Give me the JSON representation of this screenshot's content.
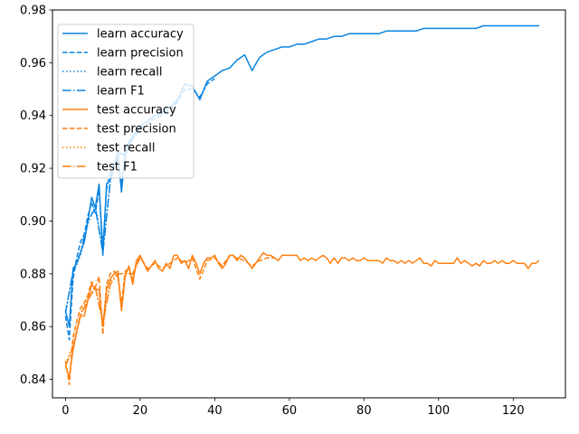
{
  "chart_data": {
    "type": "line",
    "title": "",
    "xlabel": "",
    "ylabel": "",
    "xlim": [
      -3.5,
      134
    ],
    "ylim": [
      0.833,
      0.98
    ],
    "xticks": [
      0,
      20,
      40,
      60,
      80,
      100,
      120
    ],
    "yticks": [
      0.84,
      0.86,
      0.88,
      0.9,
      0.92,
      0.94,
      0.96,
      0.98
    ],
    "ytick_labels": [
      "0.84",
      "0.86",
      "0.88",
      "0.90",
      "0.92",
      "0.94",
      "0.96",
      "0.98"
    ],
    "grid": false,
    "legend_position": "top-left",
    "colors": {
      "learn": "#1f77b4",
      "test": "#ff7f0e",
      "learn_bright": "#0a84e0"
    },
    "series": [
      {
        "name": "learn accuracy",
        "color": "#0a84e0",
        "style": "solid",
        "x": [
          0,
          1,
          2,
          3,
          4,
          5,
          6,
          7,
          8,
          9,
          10,
          11,
          12,
          13,
          14,
          15,
          16,
          17,
          18,
          19,
          20,
          22,
          24,
          26,
          28,
          30,
          32,
          34,
          36,
          38,
          40,
          42,
          44,
          46,
          48,
          50,
          52,
          54,
          56,
          58,
          60,
          62,
          64,
          66,
          68,
          70,
          72,
          74,
          76,
          78,
          80,
          82,
          84,
          86,
          88,
          90,
          92,
          94,
          96,
          98,
          100,
          102,
          104,
          106,
          108,
          110,
          112,
          114,
          116,
          118,
          120,
          122,
          124,
          126,
          127
        ],
        "y": [
          0.866,
          0.86,
          0.882,
          0.884,
          0.888,
          0.892,
          0.9,
          0.909,
          0.905,
          0.914,
          0.887,
          0.914,
          0.916,
          0.921,
          0.926,
          0.911,
          0.926,
          0.93,
          0.932,
          0.934,
          0.936,
          0.938,
          0.94,
          0.941,
          0.943,
          0.946,
          0.952,
          0.951,
          0.946,
          0.953,
          0.955,
          0.957,
          0.958,
          0.961,
          0.963,
          0.957,
          0.962,
          0.964,
          0.965,
          0.966,
          0.966,
          0.967,
          0.967,
          0.968,
          0.969,
          0.969,
          0.97,
          0.97,
          0.971,
          0.971,
          0.971,
          0.971,
          0.971,
          0.972,
          0.972,
          0.972,
          0.972,
          0.972,
          0.973,
          0.973,
          0.973,
          0.973,
          0.973,
          0.973,
          0.973,
          0.973,
          0.974,
          0.974,
          0.974,
          0.974,
          0.974,
          0.974,
          0.974,
          0.974,
          0.974
        ]
      },
      {
        "name": "learn precision",
        "color": "#0a84e0",
        "style": "dashed",
        "x": [
          0,
          1,
          2,
          3,
          4,
          5,
          6,
          7,
          8,
          9,
          10,
          11,
          12,
          13,
          14,
          15,
          16,
          17,
          18,
          19,
          20,
          22,
          24,
          26,
          28,
          30,
          32,
          34,
          36,
          38,
          40
        ],
        "y": [
          0.864,
          0.855,
          0.878,
          0.886,
          0.892,
          0.895,
          0.902,
          0.907,
          0.903,
          0.912,
          0.89,
          0.912,
          0.918,
          0.92,
          0.924,
          0.914,
          0.924,
          0.929,
          0.931,
          0.933,
          0.935,
          0.937,
          0.939,
          0.94,
          0.942,
          0.945,
          0.95,
          0.95,
          0.947,
          0.952,
          0.954
        ]
      },
      {
        "name": "learn recall",
        "color": "#0a84e0",
        "style": "dotted",
        "x": [
          0,
          2,
          4,
          6,
          8,
          10,
          12,
          14,
          16,
          18,
          20
        ],
        "y": [
          0.866,
          0.88,
          0.887,
          0.899,
          0.906,
          0.889,
          0.915,
          0.925,
          0.925,
          0.931,
          0.935
        ]
      },
      {
        "name": "learn F1",
        "color": "#0a84e0",
        "style": "dashdot",
        "x": [
          0,
          2,
          4,
          6,
          8,
          10,
          12,
          14,
          16,
          18,
          20
        ],
        "y": [
          0.865,
          0.881,
          0.888,
          0.9,
          0.905,
          0.888,
          0.915,
          0.926,
          0.925,
          0.932,
          0.935
        ]
      },
      {
        "name": "test accuracy",
        "color": "#ff7f0e",
        "style": "solid",
        "x": [
          0,
          1,
          2,
          3,
          4,
          5,
          6,
          7,
          8,
          9,
          10,
          11,
          12,
          13,
          14,
          15,
          16,
          17,
          18,
          19,
          20,
          21,
          22,
          23,
          24,
          25,
          26,
          27,
          28,
          29,
          30,
          31,
          32,
          33,
          34,
          35,
          36,
          37,
          38,
          39,
          40,
          41,
          42,
          43,
          44,
          45,
          46,
          47,
          48,
          49,
          50,
          51,
          52,
          53,
          54,
          55,
          56,
          57,
          58,
          59,
          60,
          61,
          62,
          63,
          64,
          65,
          66,
          67,
          68,
          69,
          70,
          71,
          72,
          73,
          74,
          75,
          76,
          77,
          78,
          79,
          80,
          81,
          82,
          83,
          84,
          85,
          86,
          87,
          88,
          89,
          90,
          91,
          92,
          93,
          94,
          95,
          96,
          97,
          98,
          99,
          100,
          101,
          102,
          103,
          104,
          105,
          106,
          107,
          108,
          109,
          110,
          111,
          112,
          113,
          114,
          115,
          116,
          117,
          118,
          119,
          120,
          121,
          122,
          123,
          124,
          125,
          126,
          127
        ],
        "y": [
          0.845,
          0.841,
          0.851,
          0.858,
          0.864,
          0.864,
          0.87,
          0.876,
          0.874,
          0.874,
          0.86,
          0.874,
          0.878,
          0.88,
          0.881,
          0.866,
          0.879,
          0.883,
          0.876,
          0.885,
          0.887,
          0.884,
          0.881,
          0.883,
          0.885,
          0.882,
          0.881,
          0.884,
          0.882,
          0.887,
          0.887,
          0.884,
          0.885,
          0.882,
          0.887,
          0.884,
          0.88,
          0.884,
          0.886,
          0.886,
          0.887,
          0.884,
          0.882,
          0.884,
          0.887,
          0.887,
          0.885,
          0.887,
          0.886,
          0.884,
          0.882,
          0.884,
          0.886,
          0.888,
          0.887,
          0.887,
          0.886,
          0.885,
          0.887,
          0.887,
          0.887,
          0.887,
          0.887,
          0.885,
          0.886,
          0.885,
          0.886,
          0.885,
          0.886,
          0.887,
          0.886,
          0.884,
          0.886,
          0.884,
          0.886,
          0.886,
          0.885,
          0.886,
          0.885,
          0.885,
          0.886,
          0.885,
          0.885,
          0.885,
          0.885,
          0.884,
          0.886,
          0.885,
          0.885,
          0.884,
          0.885,
          0.884,
          0.885,
          0.884,
          0.885,
          0.886,
          0.884,
          0.884,
          0.883,
          0.885,
          0.884,
          0.884,
          0.884,
          0.884,
          0.884,
          0.886,
          0.884,
          0.885,
          0.884,
          0.883,
          0.884,
          0.883,
          0.885,
          0.884,
          0.884,
          0.885,
          0.884,
          0.885,
          0.884,
          0.884,
          0.885,
          0.884,
          0.884,
          0.884,
          0.882,
          0.884,
          0.884,
          0.885
        ]
      },
      {
        "name": "test precision",
        "color": "#ff7f0e",
        "style": "dashed",
        "x": [
          0,
          1,
          2,
          3,
          4,
          5,
          6,
          7,
          8,
          9,
          10,
          11,
          12,
          13,
          14,
          15,
          16,
          17,
          18,
          19,
          20,
          22,
          24,
          26,
          28,
          30,
          32,
          34,
          36,
          38,
          40,
          42,
          44,
          46,
          48,
          50,
          52,
          54,
          56
        ],
        "y": [
          0.847,
          0.838,
          0.856,
          0.862,
          0.867,
          0.869,
          0.872,
          0.877,
          0.875,
          0.879,
          0.857,
          0.876,
          0.88,
          0.881,
          0.879,
          0.869,
          0.881,
          0.882,
          0.878,
          0.884,
          0.886,
          0.882,
          0.884,
          0.882,
          0.884,
          0.886,
          0.884,
          0.886,
          0.878,
          0.885,
          0.886,
          0.883,
          0.887,
          0.886,
          0.885,
          0.883,
          0.885,
          0.886,
          0.886
        ]
      },
      {
        "name": "test recall",
        "color": "#ff7f0e",
        "style": "dotted",
        "x": [
          0,
          2,
          4,
          6,
          8,
          10,
          12,
          14,
          16,
          18,
          20
        ],
        "y": [
          0.846,
          0.853,
          0.865,
          0.871,
          0.875,
          0.862,
          0.877,
          0.88,
          0.88,
          0.88,
          0.886
        ]
      },
      {
        "name": "test F1",
        "color": "#ff7f0e",
        "style": "dashdot",
        "x": [
          0,
          2,
          4,
          6,
          8,
          10,
          12,
          14,
          16,
          18,
          20
        ],
        "y": [
          0.845,
          0.852,
          0.864,
          0.87,
          0.875,
          0.861,
          0.876,
          0.88,
          0.88,
          0.88,
          0.886
        ]
      }
    ]
  }
}
